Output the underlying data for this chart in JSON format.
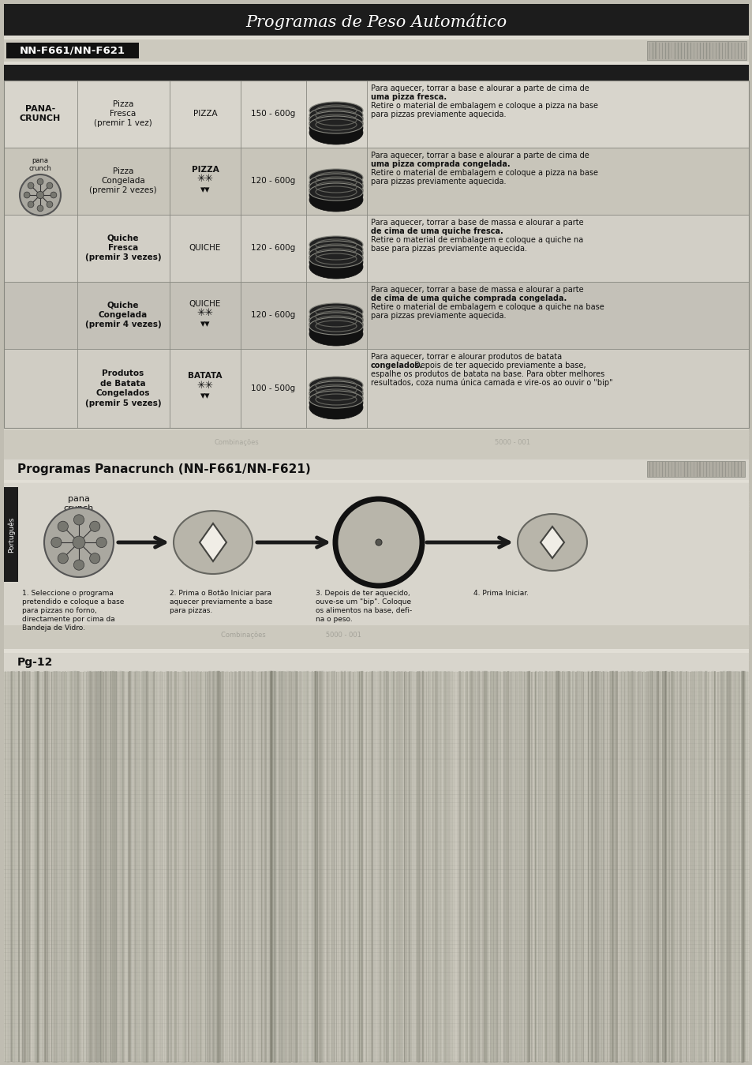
{
  "title": "Programas de Peso Automático",
  "subtitle": "NN-F661/NN-F621",
  "section2_title": "Programas Panacrunch (NN-F661/NN-F621)",
  "page_bg": "#c0bdb2",
  "content_bg": "#d8d5cc",
  "header_bg": "#1a1a1a",
  "table_dark_row": "#b8b5aa",
  "table_light_row": "#ccc9be",
  "row_data": [
    {
      "col1": "PANA-\nCRUNCH",
      "col2": "Pizza\nFresca\n(premir 1 vez)",
      "col3": "PIZZA",
      "col3_extra": "",
      "col4": "150 - 600g",
      "desc_line1": "Para aquecer, torrar a base e alourar a parte de cima de",
      "desc_bold": "uma pizza fresca.",
      "desc_line3": "Retire o material de embalagem e coloque a pizza na base",
      "desc_line4": "para pizzas previamente aquecida.",
      "has_icon": false,
      "col3_bold": false
    },
    {
      "col1": "",
      "col2": "Pizza\nCongelada\n(premir 2 vezes)",
      "col3": "PIZZA",
      "col3_extra": "**\n▾▾",
      "col4": "120 - 600g",
      "desc_line1": "Para aquecer, torrar a base e alourar a parte de cima de",
      "desc_bold": "uma pizza comprada congelada.",
      "desc_line3": "Retire o material de embalagem e coloque a pizza na base",
      "desc_line4": "para pizzas previamente aquecida.",
      "has_icon": true,
      "col3_bold": false
    },
    {
      "col1": "",
      "col2": "Quiche\nFresca\n(premir 3 vezes)",
      "col3": "QUICHE",
      "col3_extra": "",
      "col4": "120 - 600g",
      "desc_line1": "Para aquecer, torrar a base de massa e alourar a parte",
      "desc_bold": "de cima de uma quiche fresca.",
      "desc_line3": "Retire o material de embalagem e coloque a quiche na",
      "desc_line4": "base para pizzas previamente aquecida.",
      "has_icon": false,
      "col3_bold": false
    },
    {
      "col1": "",
      "col2": "Quiche\nCongelada\n(premir 4 vezes)",
      "col3": "QUICHE",
      "col3_extra": "**\n▾▾",
      "col4": "120 - 600g",
      "desc_line1": "Para aquecer, torrar a base de massa e alourar a parte",
      "desc_bold": "de cima de uma quiche comprada congelada.",
      "desc_line3": "Retire o material de embalagem e coloque a quiche na base",
      "desc_line4": "para pizzas previamente aquecida.",
      "has_icon": false,
      "col3_bold": false
    },
    {
      "col1": "",
      "col2": "Produtos\nde Batata\nCongelados\n(premir 5 vezes)",
      "col3": "BATATA",
      "col3_extra": "**\n▾▾",
      "col4": "100 - 500g",
      "desc_line1": "Para aquecer, torrar e alourar produtos de batata",
      "desc_bold": "congelados.",
      "desc_line3": " Depois de ter aquecido previamente a base, espalhe os produtos de batata na base. Para obter melhores",
      "desc_line4": "resultados, coza numa única camada e vire-os ao ouvir o \"bip\"",
      "has_icon": false,
      "col3_bold": true
    }
  ],
  "step_texts": [
    "1. Seleccione o programa\npretendido e coloque a base\npara pizzas no forno,\ndirectamente por cima da\nBandeja de Vidro.",
    "2. Prima o Botão Iniciar para\naquecer previamente a base\npara pizzas.",
    "3. Depois de ter aquecido,\nouve-se um \"bip\". Coloque\nos alimentos na base, defi-\nna o peso.",
    "4. Prima Iniciar."
  ],
  "portugues_label": "Português",
  "pg_label": "Pg-12"
}
